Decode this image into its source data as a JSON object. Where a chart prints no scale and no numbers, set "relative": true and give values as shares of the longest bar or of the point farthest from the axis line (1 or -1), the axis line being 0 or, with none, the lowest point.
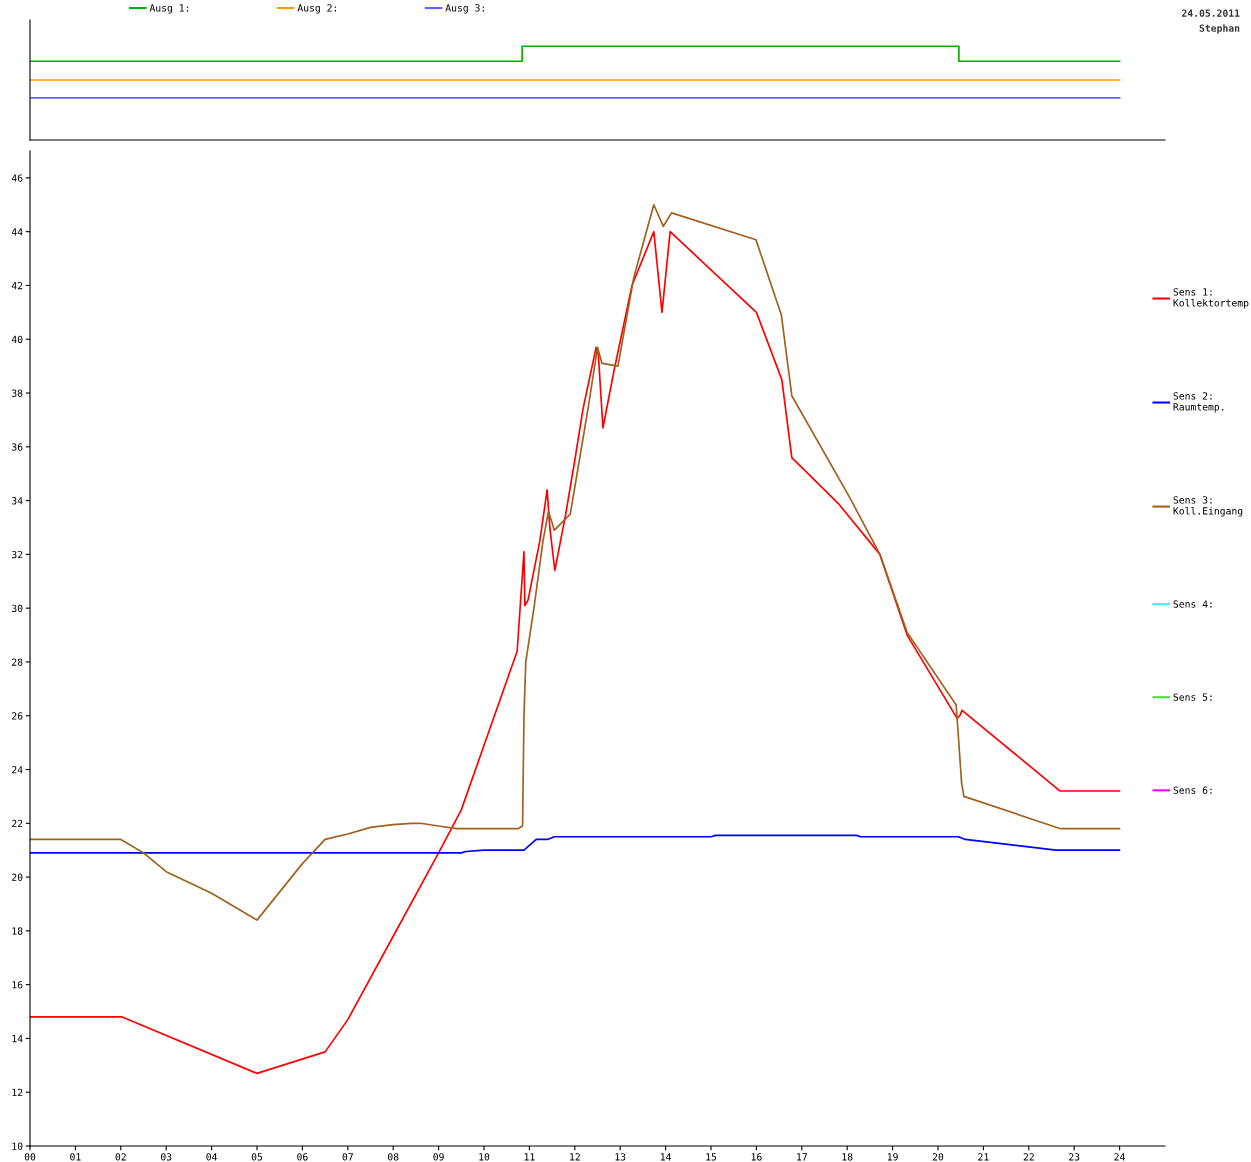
{
  "chart_data": [
    {
      "type": "step",
      "relative": true,
      "xlim": [
        0,
        25
      ],
      "legend": "top",
      "grid": false,
      "annotations": [
        "24.05.2011",
        "Stephan"
      ],
      "series": [
        {
          "name": "Ausg 1:",
          "color": "#00b000",
          "x": [
            0,
            10.84,
            20.46,
            24
          ],
          "values": [
            0.84,
            1,
            0.84,
            0.84
          ]
        },
        {
          "name": "Ausg 2:",
          "color": "#ff9900",
          "x": [
            0,
            24
          ],
          "values": [
            0.64,
            0.64
          ]
        },
        {
          "name": "Ausg 3:",
          "color": "#6060ff",
          "x": [
            0,
            24
          ],
          "values": [
            0.45,
            0.45
          ]
        }
      ]
    },
    {
      "type": "line",
      "xlim": [
        0,
        25
      ],
      "ylim": [
        10,
        47
      ],
      "legend": "right",
      "grid": false,
      "xticks": [
        {
          "value": 0,
          "label": "00"
        },
        {
          "value": 1,
          "label": "01"
        },
        {
          "value": 2,
          "label": "02"
        },
        {
          "value": 3,
          "label": "03"
        },
        {
          "value": 4,
          "label": "04"
        },
        {
          "value": 5,
          "label": "05"
        },
        {
          "value": 6,
          "label": "06"
        },
        {
          "value": 7,
          "label": "07"
        },
        {
          "value": 8,
          "label": "08"
        },
        {
          "value": 9,
          "label": "09"
        },
        10,
        11,
        12,
        13,
        14,
        15,
        16,
        17,
        18,
        19,
        20,
        21,
        22,
        23,
        24
      ],
      "yticks": [
        10,
        12,
        14,
        16,
        18,
        20,
        22,
        24,
        26,
        28,
        30,
        32,
        34,
        36,
        38,
        40,
        42,
        44,
        46
      ],
      "series": [
        {
          "name": "Sens 1:\nKollektortemp",
          "color": "#ff0000",
          "x": [
            0,
            2.03,
            5.0,
            6.5,
            7.0,
            8.0,
            9.0,
            9.5,
            10.73,
            10.88,
            10.9,
            10.97,
            11.23,
            11.39,
            11.45,
            11.56,
            11.8,
            12.0,
            12.18,
            12.47,
            12.52,
            12.62,
            12.86,
            13.26,
            13.74,
            13.92,
            14.1,
            16.0,
            16.56,
            16.78,
            17.8,
            18.72,
            19.32,
            20.42,
            20.48,
            20.53,
            22.69,
            24
          ],
          "values": [
            14.8,
            14.8,
            12.7,
            13.5,
            14.7,
            17.8,
            20.9,
            22.5,
            28.4,
            32.1,
            30.1,
            30.3,
            32.5,
            34.4,
            33.0,
            31.4,
            33.5,
            35.5,
            37.4,
            39.7,
            39.4,
            36.7,
            38.8,
            42.0,
            44.0,
            41.0,
            44.0,
            41.0,
            38.5,
            35.6,
            33.9,
            32.0,
            29.0,
            25.9,
            26.0,
            26.2,
            23.2,
            23.2
          ]
        },
        {
          "name": "Sens 2:\nRaumtemp.",
          "color": "#0000ff",
          "x": [
            0,
            9.5,
            9.6,
            10.0,
            10.88,
            11.15,
            11.4,
            11.55,
            15.0,
            15.1,
            18.2,
            18.3,
            20.45,
            20.6,
            22.6,
            24
          ],
          "values": [
            20.9,
            20.9,
            20.95,
            21.0,
            21.0,
            21.4,
            21.4,
            21.5,
            21.5,
            21.55,
            21.55,
            21.5,
            21.5,
            21.4,
            21.0,
            21.0
          ]
        },
        {
          "name": "Sens 3:\nKoll.Eingang",
          "color": "#a0601e",
          "x": [
            0,
            2.0,
            2.5,
            3.0,
            4.0,
            5.0,
            6.0,
            6.5,
            7.0,
            7.5,
            8.0,
            8.4,
            8.6,
            9.0,
            9.4,
            10.0,
            10.75,
            10.85,
            10.88,
            10.92,
            11.1,
            11.3,
            11.42,
            11.55,
            11.9,
            12.1,
            12.3,
            12.5,
            12.6,
            12.95,
            13.3,
            13.74,
            13.95,
            14.13,
            15.99,
            16.55,
            16.78,
            18.06,
            18.72,
            19.32,
            20.4,
            20.45,
            20.52,
            20.57,
            22.7,
            24
          ],
          "values": [
            21.4,
            21.4,
            20.9,
            20.2,
            19.4,
            18.4,
            20.5,
            21.4,
            21.6,
            21.85,
            21.95,
            22.0,
            22.0,
            21.9,
            21.8,
            21.8,
            21.8,
            21.9,
            26.0,
            28.0,
            30.0,
            32.5,
            33.6,
            32.9,
            33.5,
            35.5,
            37.5,
            39.7,
            39.1,
            39.0,
            42.3,
            45.0,
            44.2,
            44.7,
            43.7,
            40.9,
            37.9,
            34.1,
            32.0,
            29.1,
            26.4,
            25.2,
            23.5,
            23.0,
            21.8,
            21.8
          ]
        },
        {
          "name": "Sens 4:",
          "color": "#40f0f0"
        },
        {
          "name": "Sens 5:",
          "color": "#40e040"
        },
        {
          "name": "Sens 6:",
          "color": "#ff00ff"
        }
      ]
    }
  ]
}
